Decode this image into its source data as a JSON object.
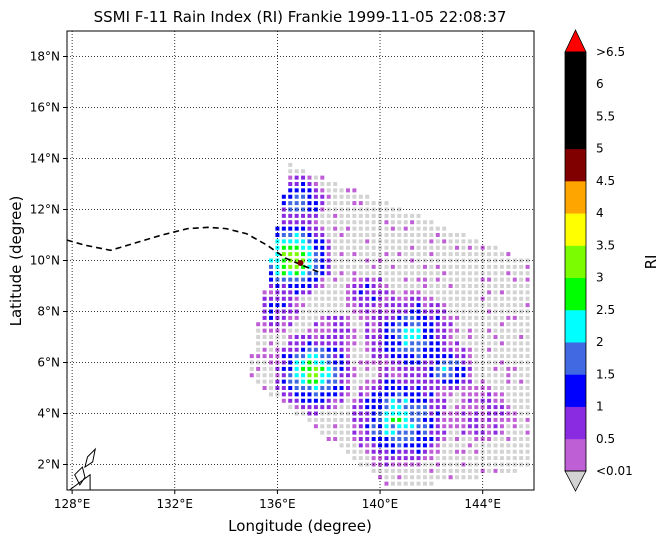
{
  "chart_data": {
    "type": "heatmap",
    "title": "SSMI F-11 Rain Index (RI) Frankie 1999-11-05 22:08:37",
    "xlabel": "Longitude (degree)",
    "ylabel": "Latitude (degree)",
    "xlim": [
      127.8,
      146.0
    ],
    "ylim": [
      1.0,
      19.0
    ],
    "grid": true,
    "grid_style": "dotted",
    "x_ticks": [
      128,
      132,
      136,
      140,
      144
    ],
    "x_tick_labels": [
      "128°E",
      "132°E",
      "136°E",
      "140°E",
      "144°E"
    ],
    "y_ticks": [
      2,
      4,
      6,
      8,
      10,
      12,
      14,
      16,
      18
    ],
    "y_tick_labels": [
      "2°N",
      "4°N",
      "6°N",
      "8°N",
      "10°N",
      "12°N",
      "14°N",
      "16°N",
      "18°N"
    ],
    "colorbar": {
      "label": "RI",
      "extend": "both",
      "under_color": "#d3d3d3",
      "over_color": "#ff0000",
      "bins": [
        {
          "label": "<0.01",
          "color": "#bf5fd6"
        },
        {
          "label": "0.5",
          "color": "#8a2be2"
        },
        {
          "label": "1",
          "color": "#0000ff"
        },
        {
          "label": "1.5",
          "color": "#4169e1"
        },
        {
          "label": "2",
          "color": "#00ffff"
        },
        {
          "label": "2.5",
          "color": "#00ff00"
        },
        {
          "label": "3",
          "color": "#7cfc00"
        },
        {
          "label": "3.5",
          "color": "#ffff00"
        },
        {
          "label": "4",
          "color": "#ffa500"
        },
        {
          "label": "4.5",
          "color": "#800000"
        },
        {
          "label": "5",
          "color": "#000000"
        },
        {
          "label": "5.5",
          "color": "#000000"
        },
        {
          "label": "6",
          "color": "#000000"
        }
      ],
      "top_label": ">6.5"
    },
    "track": {
      "style": "dashed",
      "lon": [
        127.8,
        128.5,
        129.5,
        130.5,
        131.5,
        132.5,
        133.3,
        134.0,
        134.8,
        135.6,
        136.3,
        137.0,
        137.6
      ],
      "lat": [
        10.8,
        10.6,
        10.4,
        10.7,
        11.0,
        11.25,
        11.3,
        11.25,
        11.05,
        10.6,
        10.1,
        9.8,
        9.55
      ]
    },
    "storm_center": {
      "lon": 136.9,
      "lat": 9.9,
      "marker": "dot",
      "color": "#800000"
    },
    "swath": {
      "corners": [
        {
          "lon": 136.5,
          "lat": 13.8
        },
        {
          "lon": 145.8,
          "lat": 10.0
        },
        {
          "lon": 145.8,
          "lat": 1.8
        },
        {
          "lon": 140.5,
          "lat": 1.0
        },
        {
          "lon": 134.8,
          "lat": 5.5
        }
      ],
      "background_class": "<0.01 (gray)"
    },
    "rain_cells": [
      {
        "lon": 136.6,
        "lat": 10.1,
        "radius": 0.9,
        "peak_bin": "3.5"
      },
      {
        "lon": 136.8,
        "lat": 12.3,
        "radius": 0.6,
        "peak_bin": "2"
      },
      {
        "lon": 135.9,
        "lat": 8.0,
        "radius": 0.5,
        "peak_bin": "1"
      },
      {
        "lon": 137.4,
        "lat": 5.6,
        "radius": 0.9,
        "peak_bin": "3"
      },
      {
        "lon": 141.2,
        "lat": 7.0,
        "radius": 1.0,
        "peak_bin": "2"
      },
      {
        "lon": 142.6,
        "lat": 5.8,
        "radius": 0.6,
        "peak_bin": "2"
      },
      {
        "lon": 140.8,
        "lat": 3.8,
        "radius": 1.1,
        "peak_bin": "2.5"
      },
      {
        "lon": 139.5,
        "lat": 8.6,
        "radius": 0.5,
        "peak_bin": "1"
      },
      {
        "lon": 138.2,
        "lat": 7.0,
        "radius": 0.5,
        "peak_bin": "0.5"
      },
      {
        "lon": 144.0,
        "lat": 4.0,
        "radius": 0.6,
        "peak_bin": "0.5"
      }
    ],
    "coastlines": [
      {
        "name": "island-a",
        "lon": [
          128.1,
          128.4,
          128.5,
          128.3,
          128.1
        ],
        "lat": [
          1.6,
          1.9,
          1.5,
          1.2,
          1.6
        ]
      },
      {
        "name": "island-b",
        "lon": [
          128.6,
          128.9,
          128.8,
          128.5,
          128.6
        ],
        "lat": [
          2.3,
          2.6,
          2.1,
          1.9,
          2.3
        ]
      },
      {
        "name": "island-c",
        "lon": [
          127.9,
          128.7,
          128.7,
          128.0
        ],
        "lat": [
          1.0,
          1.6,
          1.0,
          1.0
        ]
      }
    ]
  }
}
